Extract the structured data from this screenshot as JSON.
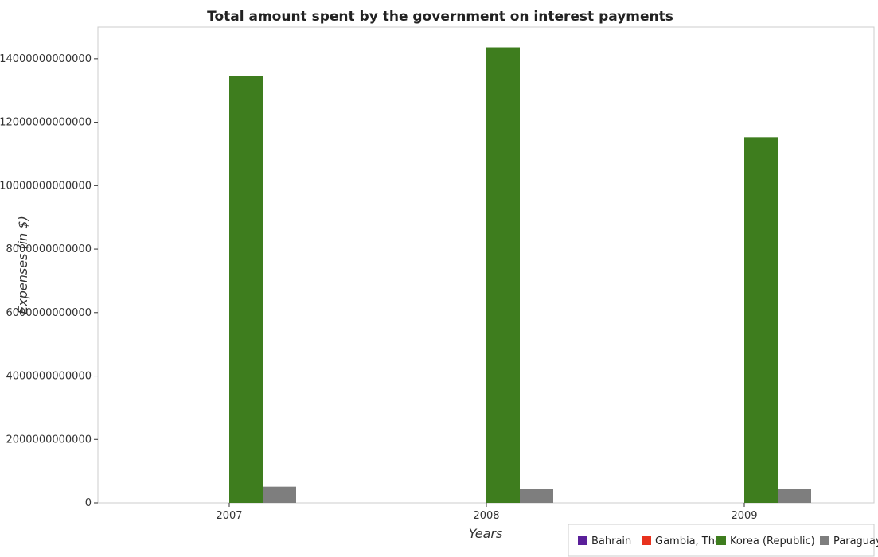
{
  "chart_data": {
    "type": "bar",
    "title": "Total amount spent by the government on interest payments",
    "xlabel": "Years",
    "ylabel": "Expenses (in $)",
    "categories": [
      "2007",
      "2008",
      "2009"
    ],
    "ylim": [
      0,
      15000000000000
    ],
    "yticks": [
      0,
      2000000000000,
      4000000000000,
      6000000000000,
      8000000000000,
      10000000000000,
      12000000000000,
      14000000000000
    ],
    "ytick_labels": [
      "0",
      "2000000000000",
      "4000000000000",
      "6000000000000",
      "8000000000000",
      "10000000000000",
      "12000000000000",
      "14000000000000"
    ],
    "series": [
      {
        "name": "Bahrain",
        "color": "#5a1f9a",
        "values": [
          0,
          0,
          0
        ]
      },
      {
        "name": "Gambia, The",
        "color": "#e8321e",
        "values": [
          0,
          0,
          0
        ]
      },
      {
        "name": "Korea (Republic)",
        "color": "#3e7d1e",
        "values": [
          13450000000000,
          14360000000000,
          11530000000000
        ]
      },
      {
        "name": "Paraguay",
        "color": "#7e7e7e",
        "values": [
          510000000000,
          440000000000,
          430000000000
        ]
      }
    ],
    "legend_position": "bottom-right",
    "grid": false
  }
}
